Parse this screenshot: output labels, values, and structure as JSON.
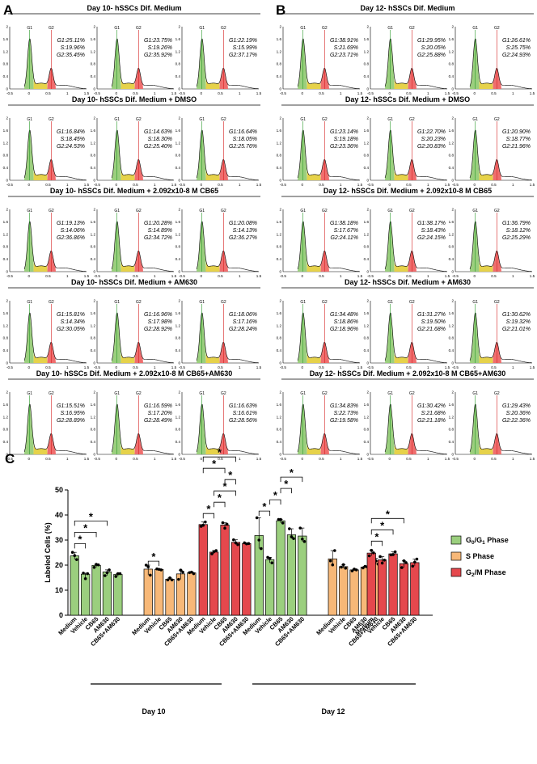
{
  "panel_labels": {
    "a": "A",
    "b": "B",
    "c": "C"
  },
  "chart_data": [
    {
      "type": "histogram-grid",
      "panel": "A",
      "x_ticks": [
        "-0.5",
        "0",
        "0.5",
        "1",
        "1.5"
      ],
      "y_ticks": [
        "0",
        "0.4",
        "0.8",
        "1.2",
        "1.6",
        "2"
      ],
      "gate_labels": {
        "g1": "G1",
        "g2": "G2"
      },
      "rows": [
        {
          "title": "Day 10- hSSCs Dif. Medium",
          "cells": [
            {
              "g1": "G1:25.11%",
              "s": "S:19.96%",
              "g2": "G2:35.45%"
            },
            {
              "g1": "G1:23.75%",
              "s": "S:19.26%",
              "g2": "G2:35.92%"
            },
            {
              "g1": "G1:22.19%",
              "s": "S:15.99%",
              "g2": "G2:37.17%"
            }
          ]
        },
        {
          "title": "Day 10- hSSCs Dif. Medium + DMSO",
          "cells": [
            {
              "g1": "G1:16.84%",
              "s": "S:18.45%",
              "g2": "G2:24.53%"
            },
            {
              "g1": "G1:14.63%",
              "s": "S:18.30%",
              "g2": "G2:25.40%"
            },
            {
              "g1": "G1:16.64%",
              "s": "S:18.05%",
              "g2": "G2:25.76%"
            }
          ]
        },
        {
          "title": "Day 10- hSSCs Dif. Medium + 2.092x10-8 M CB65",
          "cells": [
            {
              "g1": "G1:19.13%",
              "s": "S:14.06%",
              "g2": "G2:36.86%"
            },
            {
              "g1": "G1:20.28%",
              "s": "S:14.89%",
              "g2": "G2:34.72%"
            },
            {
              "g1": "G1:20.08%",
              "s": "S:14.13%",
              "g2": "G2:36.27%"
            }
          ]
        },
        {
          "title": "Day 10- hSSCs Dif. Medium + AM630",
          "cells": [
            {
              "g1": "G1:15.81%",
              "s": "S:14.34%",
              "g2": "G2:30.05%"
            },
            {
              "g1": "G1:16.96%",
              "s": "S:17.98%",
              "g2": "G2:28.92%"
            },
            {
              "g1": "G1:18.06%",
              "s": "S:17.16%",
              "g2": "G2:28.24%"
            }
          ]
        },
        {
          "title": "Day 10- hSSCs Dif. Medium + 2.092x10-8 M CB65+AM630",
          "cells": [
            {
              "g1": "G1:15.51%",
              "s": "S:16.95%",
              "g2": "G2:28.89%"
            },
            {
              "g1": "G1:16.59%",
              "s": "S:17.20%",
              "g2": "G2:28.49%"
            },
            {
              "g1": "G1:16.63%",
              "s": "S:16.61%",
              "g2": "G2:28.56%"
            }
          ]
        }
      ]
    },
    {
      "type": "histogram-grid",
      "panel": "B",
      "x_ticks": [
        "-0.5",
        "0",
        "0.5",
        "1",
        "1.5"
      ],
      "y_ticks": [
        "0",
        "0.4",
        "0.8",
        "1.2",
        "1.6",
        "2"
      ],
      "gate_labels": {
        "g1": "G1",
        "g2": "G2"
      },
      "rows": [
        {
          "title": "Day 12- hSSCs Dif. Medium",
          "cells": [
            {
              "g1": "G1:38.91%",
              "s": "S:21.69%",
              "g2": "G2:23.71%"
            },
            {
              "g1": "G1:29.95%",
              "s": "S:20.05%",
              "g2": "G2:25.88%"
            },
            {
              "g1": "G1:26.61%",
              "s": "S:25.75%",
              "g2": "G2:24.93%"
            }
          ]
        },
        {
          "title": "Day 12- hSSCs Dif. Medium + DMSO",
          "cells": [
            {
              "g1": "G1:23.14%",
              "s": "S:19.18%",
              "g2": "G2:23.36%"
            },
            {
              "g1": "G1:22.70%",
              "s": "S:20.23%",
              "g2": "G2:20.83%"
            },
            {
              "g1": "G1:20.90%",
              "s": "S:18.77%",
              "g2": "G2:21.96%"
            }
          ]
        },
        {
          "title": "Day 12- hSSCs Dif. Medium + 2.092x10-8 M CB65",
          "cells": [
            {
              "g1": "G1:38.18%",
              "s": "S:17.67%",
              "g2": "G2:24.11%"
            },
            {
              "g1": "G1:38.17%",
              "s": "S:18.43%",
              "g2": "G2:24.15%"
            },
            {
              "g1": "G1:36.79%",
              "s": "S:18.12%",
              "g2": "G2:25.29%"
            }
          ]
        },
        {
          "title": "Day 12- hSSCs Dif. Medium + AM630",
          "cells": [
            {
              "g1": "G1:34.48%",
              "s": "S:18.86%",
              "g2": "G2:18.96%"
            },
            {
              "g1": "G1:31.27%",
              "s": "S:19.50%",
              "g2": "G2:21.68%"
            },
            {
              "g1": "G1:30.62%",
              "s": "S:19.32%",
              "g2": "G2:21.01%"
            }
          ]
        },
        {
          "title": "Day 12- hSSCs Dif. Medium + 2.092x10-8 M CB65+AM630",
          "cells": [
            {
              "g1": "G1:34.83%",
              "s": "S:22.73%",
              "g2": "G2:19.58%"
            },
            {
              "g1": "G1:30.42%",
              "s": "S:21.68%",
              "g2": "G2:21.18%"
            },
            {
              "g1": "G1:29.43%",
              "s": "S:20.36%",
              "g2": "G2:22.36%"
            }
          ]
        }
      ]
    },
    {
      "type": "bar",
      "panel": "C",
      "ylabel": "Labeled Cells (%)",
      "ylim": [
        0,
        50
      ],
      "yticks": [
        0,
        10,
        20,
        30,
        40,
        50
      ],
      "categories": [
        "Medium",
        "Vehicle",
        "CB65",
        "AM630",
        "CB65+AM630"
      ],
      "groups": [
        {
          "day": "Day 10",
          "phase": "G0/G1",
          "values": [
            23.7,
            16.4,
            19.9,
            17.3,
            16.3
          ],
          "points": [
            [
              25.1,
              23.8,
              22.2
            ],
            [
              16.8,
              14.6,
              16.6
            ],
            [
              19.1,
              20.3,
              20.1
            ],
            [
              15.8,
              17.0,
              18.1
            ],
            [
              15.5,
              16.6,
              16.6
            ]
          ]
        },
        {
          "day": "Day 10",
          "phase": "S",
          "values": [
            18.4,
            18.3,
            14.4,
            16.5,
            16.9
          ],
          "points": [
            [
              20.0,
              19.3,
              16.0
            ],
            [
              18.5,
              18.3,
              18.1
            ],
            [
              14.1,
              14.9,
              14.1
            ],
            [
              14.3,
              18.0,
              17.2
            ],
            [
              17.0,
              17.2,
              16.6
            ]
          ]
        },
        {
          "day": "Day 10",
          "phase": "G2/M",
          "values": [
            36.2,
            25.2,
            36.0,
            29.1,
            28.6
          ],
          "points": [
            [
              35.5,
              35.9,
              37.2
            ],
            [
              24.5,
              25.4,
              25.8
            ],
            [
              36.9,
              34.7,
              36.3
            ],
            [
              30.1,
              28.9,
              28.2
            ],
            [
              28.9,
              28.5,
              28.6
            ]
          ]
        },
        {
          "day": "Day 12",
          "phase": "G0/G1",
          "values": [
            31.8,
            22.2,
            37.7,
            32.1,
            31.6
          ],
          "points": [
            [
              38.9,
              30.0,
              26.6
            ],
            [
              23.1,
              22.7,
              20.9
            ],
            [
              38.2,
              38.2,
              36.8
            ],
            [
              34.5,
              31.3,
              30.6
            ],
            [
              34.8,
              30.4,
              29.4
            ]
          ]
        },
        {
          "day": "Day 12",
          "phase": "S",
          "values": [
            22.5,
            19.4,
            18.1,
            19.2,
            21.6
          ],
          "points": [
            [
              21.7,
              20.1,
              25.8
            ],
            [
              19.2,
              20.2,
              18.8
            ],
            [
              17.7,
              18.4,
              18.1
            ],
            [
              18.9,
              19.5,
              19.3
            ],
            [
              22.7,
              21.7,
              20.4
            ]
          ]
        },
        {
          "day": "Day 12",
          "phase": "G2/M",
          "values": [
            24.8,
            22.1,
            24.5,
            20.6,
            21.0
          ],
          "points": [
            [
              23.7,
              25.9,
              24.9
            ],
            [
              23.4,
              20.8,
              22.0
            ],
            [
              24.1,
              24.2,
              25.3
            ],
            [
              19.0,
              21.7,
              21.0
            ],
            [
              19.6,
              21.2,
              22.4
            ]
          ]
        }
      ],
      "legend": [
        {
          "base": "G",
          "sub": "0",
          "mid": "/G",
          "sub2": "1",
          "rest": " Phase",
          "color": "#9bcf7e"
        },
        {
          "base": "S Phase",
          "sub": "",
          "mid": "",
          "sub2": "",
          "rest": "",
          "color": "#f7b878"
        },
        {
          "base": "G",
          "sub": "2",
          "mid": "/M",
          "sub2": "",
          "rest": " Phase",
          "color": "#e5484d"
        }
      ],
      "significance_marker": "*",
      "x_group_labels": [
        "Day 10",
        "Day 12"
      ]
    }
  ]
}
